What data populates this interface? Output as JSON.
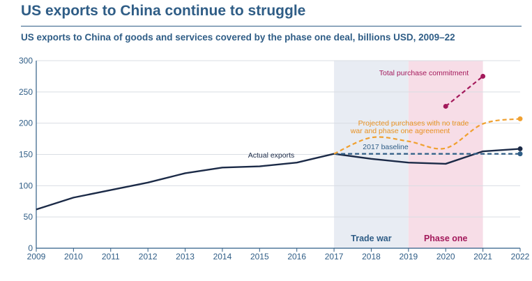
{
  "title": "US exports to China continue to struggle",
  "subtitle": "US exports to China of goods and services covered by the phase one deal, billions USD, 2009–22",
  "chart_data": {
    "type": "line",
    "ylim": [
      0,
      300
    ],
    "yticks": [
      "0",
      "50",
      "100",
      "150",
      "200",
      "250",
      "300"
    ],
    "x_categories": [
      "2009",
      "2010",
      "2011",
      "2012",
      "2013",
      "2014",
      "2015",
      "2016",
      "2017",
      "2018",
      "2019",
      "2020",
      "2021",
      "2022"
    ],
    "grid": true,
    "bands": [
      {
        "label": "Trade war",
        "from": 2017,
        "to": 2019,
        "color": "#e8ecf3",
        "label_color": "#2f5d86"
      },
      {
        "label": "Phase one",
        "from": 2019,
        "to": 2021,
        "color": "#f7dde7",
        "label_color": "#a3195b"
      }
    ],
    "series": [
      {
        "name": "Actual exports",
        "color": "#1b2a47",
        "style": "solid",
        "x": [
          2009,
          2010,
          2011,
          2012,
          2013,
          2014,
          2015,
          2016,
          2017,
          2018,
          2019,
          2020,
          2021,
          2022
        ],
        "y": [
          62,
          81,
          93,
          105,
          120,
          129,
          131,
          137,
          151,
          143,
          137,
          135,
          155,
          159
        ]
      },
      {
        "name": "2017 baseline",
        "color": "#2f5d86",
        "style": "dashed",
        "x": [
          2017,
          2022
        ],
        "y": [
          151,
          151
        ]
      },
      {
        "name": "Projected purchases with no trade war and phase one agreement",
        "label_lines": [
          "Projected purchases with no trade",
          "war and phase one agreement"
        ],
        "color": "#f0a030",
        "style": "dashed",
        "x": [
          2017,
          2018,
          2019,
          2020,
          2021,
          2022
        ],
        "y": [
          151,
          177,
          171,
          160,
          199,
          207
        ]
      },
      {
        "name": "Total purchase commitment",
        "color": "#a3195b",
        "style": "dashed",
        "x": [
          2020,
          2021
        ],
        "y": [
          227,
          275
        ]
      }
    ]
  }
}
